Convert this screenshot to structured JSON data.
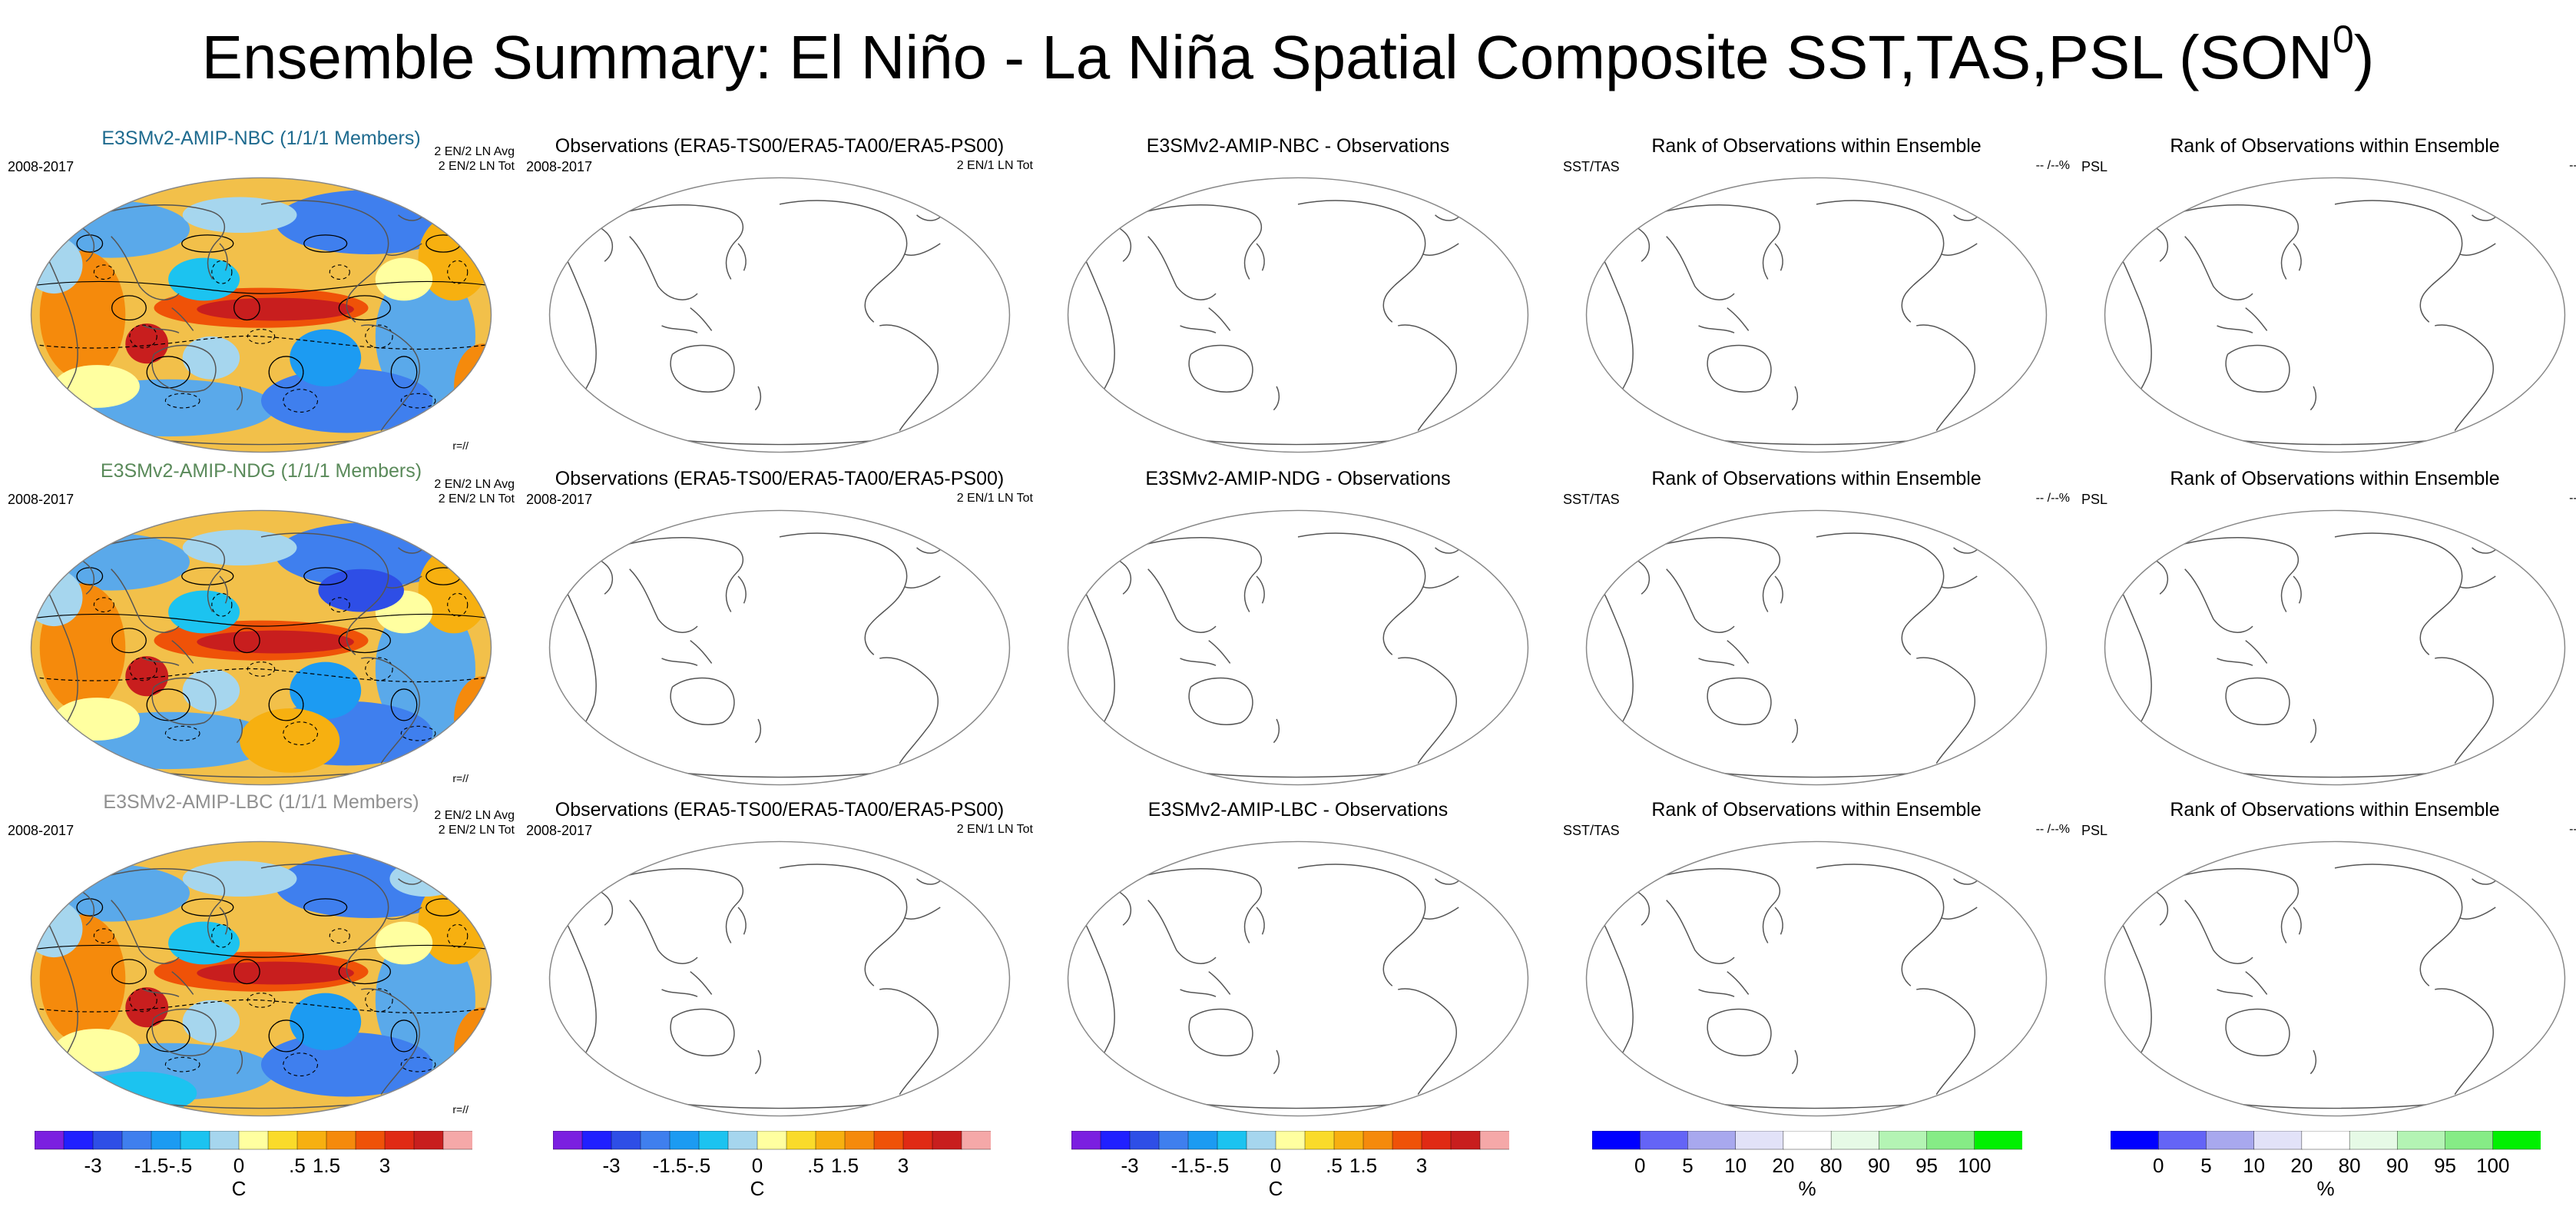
{
  "title": "Ensemble Summary: El Niño - La Niña Spatial Composite SST,TAS,PSL (SON",
  "title_sup": "0",
  "title_tail": ")",
  "rows": [
    {
      "model": {
        "title": "E3SMv2-AMIP-NBC (1/1/1 Members)",
        "title_color": "#1f6b8f",
        "period": "2008-2017",
        "stat1": "2 EN/2 LN Avg",
        "stat2": "2 EN/2 LN Tot",
        "corner": "r=//"
      },
      "obs": {
        "title": "Observations (ERA5-TS00/ERA5-TA00/ERA5-PS00)",
        "period": "2008-2017",
        "stat": "2 EN/1 LN Tot"
      },
      "diff": {
        "title": "E3SMv2-AMIP-NBC - Observations"
      },
      "rank1": {
        "title": "Rank of Observations within Ensemble",
        "left": "SST/TAS",
        "right": "-- /--%"
      },
      "rank2": {
        "title": "Rank of Observations within Ensemble",
        "left": "PSL",
        "right": "--%"
      }
    },
    {
      "model": {
        "title": "E3SMv2-AMIP-NDG (1/1/1 Members)",
        "title_color": "#5a8a5a",
        "period": "2008-2017",
        "stat1": "2 EN/2 LN Avg",
        "stat2": "2 EN/2 LN Tot",
        "corner": "r=//"
      },
      "obs": {
        "title": "Observations (ERA5-TS00/ERA5-TA00/ERA5-PS00)",
        "period": "2008-2017",
        "stat": "2 EN/1 LN Tot"
      },
      "diff": {
        "title": "E3SMv2-AMIP-NDG - Observations"
      },
      "rank1": {
        "title": "Rank of Observations within Ensemble",
        "left": "SST/TAS",
        "right": "-- /--%"
      },
      "rank2": {
        "title": "Rank of Observations within Ensemble",
        "left": "PSL",
        "right": "--%"
      }
    },
    {
      "model": {
        "title": "E3SMv2-AMIP-LBC (1/1/1 Members)",
        "title_color": "#909090",
        "period": "2008-2017",
        "stat1": "2 EN/2 LN Avg",
        "stat2": "2 EN/2 LN Tot",
        "corner": "r=//"
      },
      "obs": {
        "title": "Observations (ERA5-TS00/ERA5-TA00/ERA5-PS00)",
        "period": "2008-2017",
        "stat": "2 EN/1 LN Tot"
      },
      "diff": {
        "title": "E3SMv2-AMIP-LBC - Observations"
      },
      "rank1": {
        "title": "Rank of Observations within Ensemble",
        "left": "SST/TAS",
        "right": "-- /--%"
      },
      "rank2": {
        "title": "Rank of Observations within Ensemble",
        "left": "PSL",
        "right": "--%"
      }
    }
  ],
  "temp_colorbar": {
    "unit": "C",
    "labels": [
      "-3",
      "-1.5",
      "-.5",
      "0",
      ".5",
      "1.5",
      "3"
    ],
    "colors": [
      "#7b1fe0",
      "#2020ff",
      "#2e4ee6",
      "#3f7fee",
      "#1c9bf2",
      "#1cc3f0",
      "#a6d6ee",
      "#ffffa0",
      "#fadb2a",
      "#f7b010",
      "#f58a0c",
      "#ef5208",
      "#e02a14",
      "#c81e1e",
      "#f5a8a8"
    ]
  },
  "rank_colorbar": {
    "unit": "%",
    "labels": [
      "0",
      "5",
      "10",
      "20",
      "80",
      "90",
      "95",
      "100"
    ],
    "colors": [
      "#0000ff",
      "#6464f6",
      "#a8a8ee",
      "#e2e2f8",
      "#ffffff",
      "#e6fae6",
      "#b4f4b4",
      "#86ec86",
      "#00f000"
    ]
  }
}
